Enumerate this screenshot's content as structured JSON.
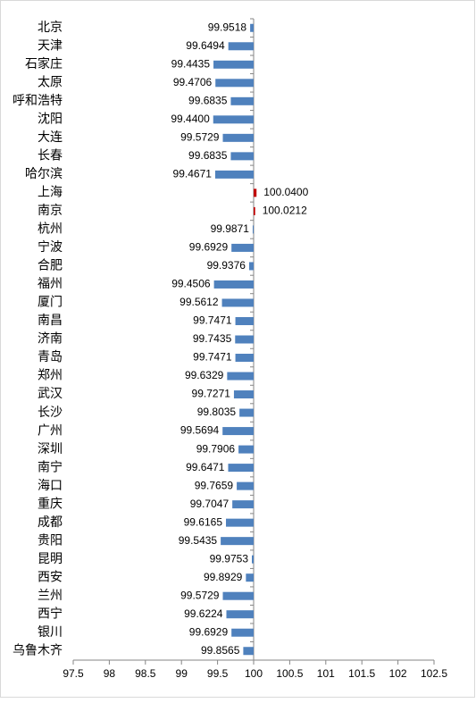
{
  "chart_data": {
    "type": "hbar",
    "categories": [
      "北京",
      "天津",
      "石家庄",
      "太原",
      "呼和浩特",
      "沈阳",
      "大连",
      "长春",
      "哈尔滨",
      "上海",
      "南京",
      "杭州",
      "宁波",
      "合肥",
      "福州",
      "厦门",
      "南昌",
      "济南",
      "青岛",
      "郑州",
      "武汉",
      "长沙",
      "广州",
      "深圳",
      "南宁",
      "海口",
      "重庆",
      "成都",
      "贵阳",
      "昆明",
      "西安",
      "兰州",
      "西宁",
      "银川",
      "乌鲁木齐"
    ],
    "values": [
      99.9518,
      99.6494,
      99.4435,
      99.4706,
      99.6835,
      99.44,
      99.5729,
      99.6835,
      99.4671,
      100.04,
      100.0212,
      99.9871,
      99.6929,
      99.9376,
      99.4506,
      99.5612,
      99.7471,
      99.7435,
      99.7471,
      99.6329,
      99.7271,
      99.8035,
      99.5694,
      99.7906,
      99.6471,
      99.7659,
      99.7047,
      99.6165,
      99.5435,
      99.9753,
      99.8929,
      99.5729,
      99.6224,
      99.6929,
      99.8565
    ],
    "value_labels": [
      "99.9518",
      "99.6494",
      "99.4435",
      "99.4706",
      "99.6835",
      "99.4400",
      "99.5729",
      "99.6835",
      "99.4671",
      "100.0400",
      "100.0212",
      "99.9871",
      "99.6929",
      "99.9376",
      "99.4506",
      "99.5612",
      "99.7471",
      "99.7435",
      "99.7471",
      "99.6329",
      "99.7271",
      "99.8035",
      "99.5694",
      "99.7906",
      "99.6471",
      "99.7659",
      "99.7047",
      "99.6165",
      "99.5435",
      "99.9753",
      "99.8929",
      "99.5729",
      "99.6224",
      "99.6929",
      "99.8565"
    ],
    "base": 100,
    "color": "#4f81bd",
    "positive_color": "#c00000",
    "xlim": [
      97.5,
      102.5
    ],
    "xticks": [
      97.5,
      98,
      98.5,
      99,
      99.5,
      100,
      100.5,
      101,
      101.5,
      102,
      102.5
    ]
  }
}
